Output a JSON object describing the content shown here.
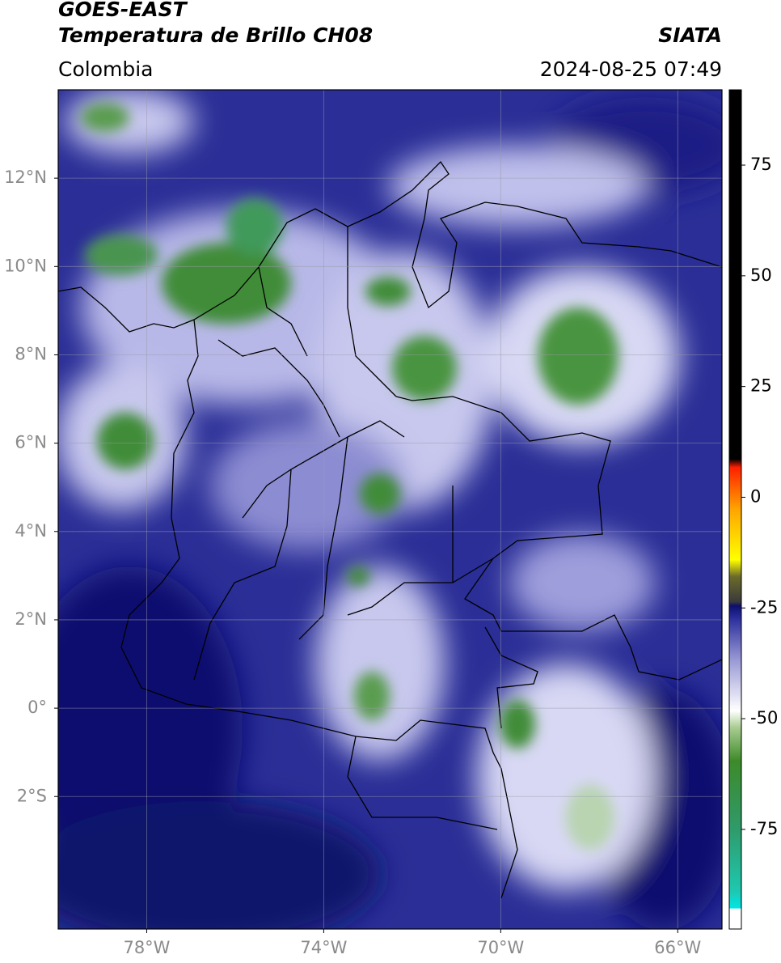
{
  "header": {
    "title": "GOES-EAST",
    "subtitle": "Temperatura de Brillo CH08",
    "source": "SIATA",
    "region": "Colombia",
    "timestamp": "2024-08-25 07:49"
  },
  "map": {
    "lonlim": [
      -80,
      -65
    ],
    "latlim": [
      -5,
      14
    ],
    "grid": true,
    "lonticks": [
      {
        "value": -78,
        "label": "78°W"
      },
      {
        "value": -74,
        "label": "74°W"
      },
      {
        "value": -70,
        "label": "70°W"
      },
      {
        "value": -66,
        "label": "66°W"
      }
    ],
    "latticks": [
      {
        "value": 12,
        "label": "12°N"
      },
      {
        "value": 10,
        "label": "10°N"
      },
      {
        "value": 8,
        "label": "8°N"
      },
      {
        "value": 6,
        "label": "6°N"
      },
      {
        "value": 4,
        "label": "4°N"
      },
      {
        "value": 2,
        "label": "2°N"
      },
      {
        "value": 0,
        "label": "0°"
      },
      {
        "value": -2,
        "label": "2°S"
      }
    ]
  },
  "colorbar": {
    "lim": [
      -97.5,
      92
    ],
    "ticks": [
      75,
      50,
      25,
      0,
      -25,
      -50,
      -75
    ]
  }
}
